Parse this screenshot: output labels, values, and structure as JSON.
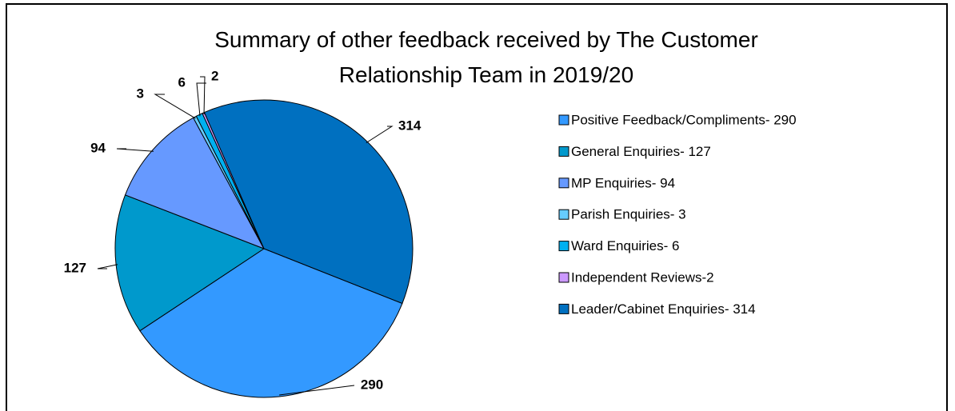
{
  "chart_data": {
    "type": "pie",
    "title": "Summary of other feedback received by The Customer Relationship Team in 2019/20",
    "categories": [
      "Positive Feedback/Compliments- 290",
      "General Enquiries- 127",
      "MP Enquiries- 94",
      "Parish Enquiries- 3",
      "Ward Enquiries- 6",
      "Independent Reviews-2",
      "Leader/Cabinet Enquiries- 314"
    ],
    "values": [
      290,
      127,
      94,
      3,
      6,
      2,
      314
    ],
    "colors": [
      "#3399ff",
      "#0099cc",
      "#6699ff",
      "#66ccff",
      "#00b0f0",
      "#cc99ff",
      "#0070c0"
    ],
    "legend": "right"
  }
}
